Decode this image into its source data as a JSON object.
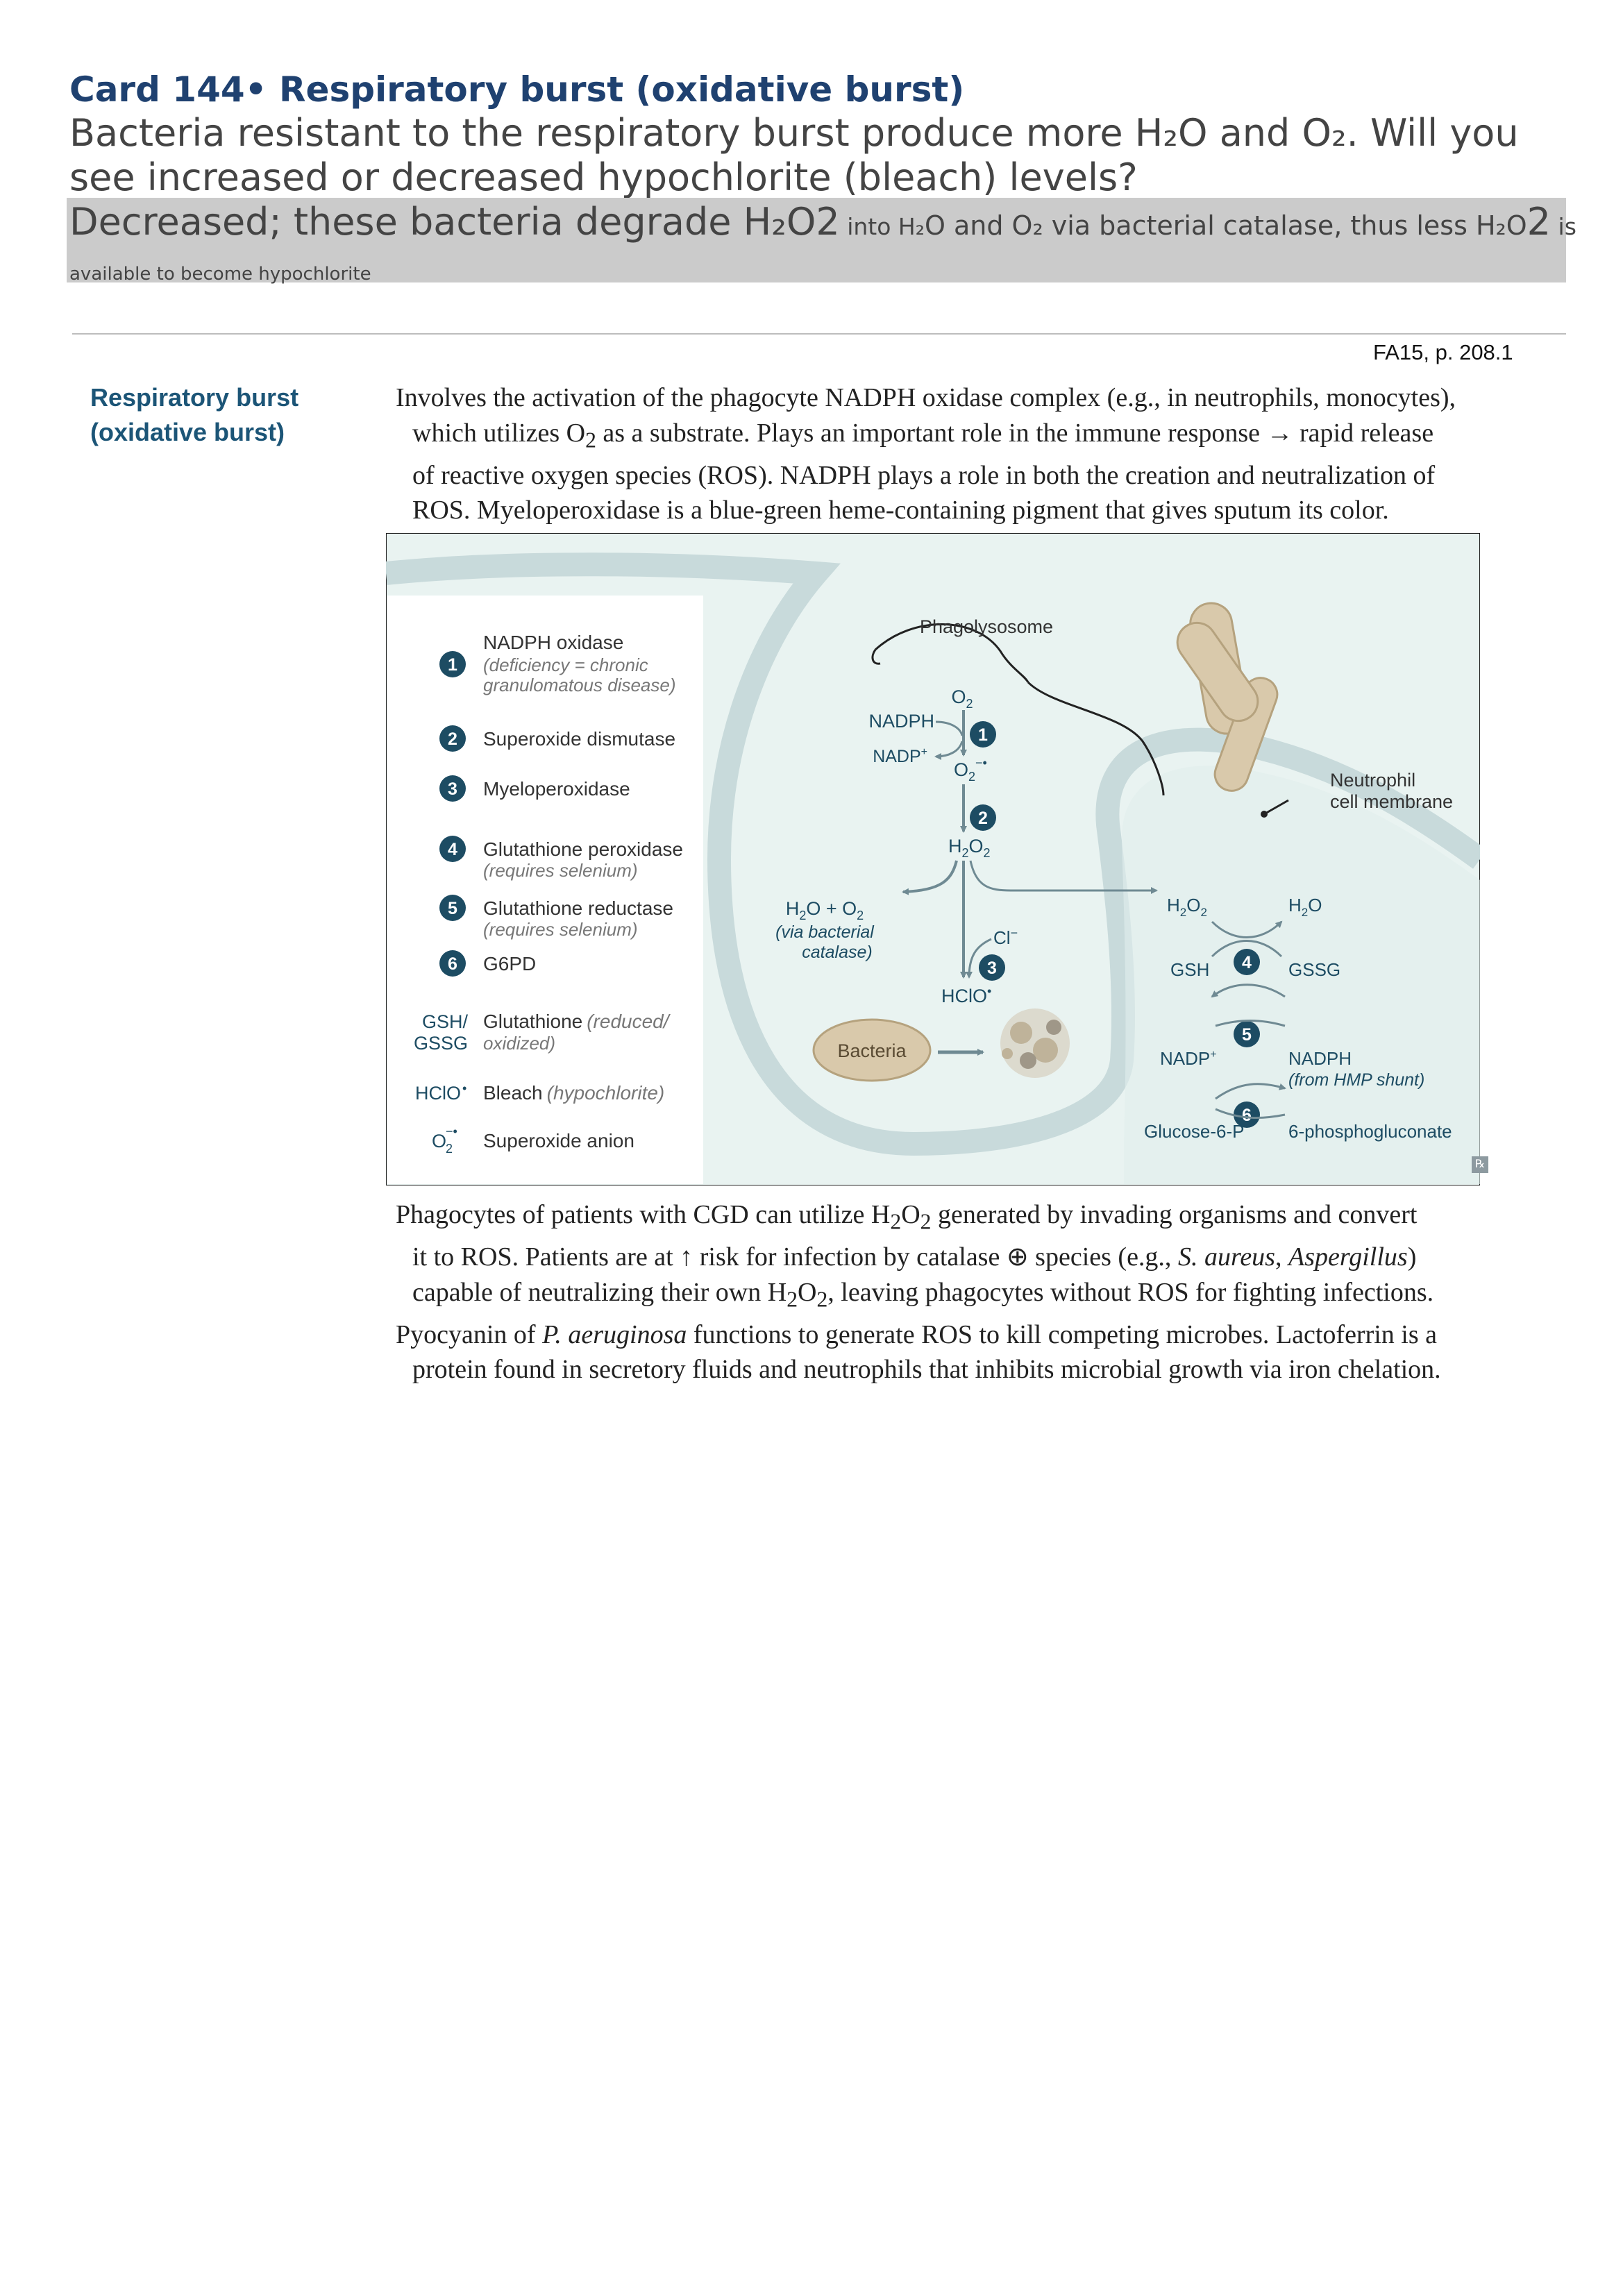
{
  "card": {
    "title": "Card 144• Respiratory burst (oxidative burst)",
    "question": "Bacteria resistant to the respiratory burst produce more H₂O and O₂. Will you see increased or decreased hypochlorite (bleach) levels?",
    "answer": {
      "a1": "Decreased; these bacteria degrade H₂O2",
      "a2": " into H₂",
      "a3": "O and O₂ via bacterial catalase, thus less H₂O",
      "a4": "2",
      "a5": " is",
      "a6": "available to become hypochlorite"
    }
  },
  "source_ref": "FA15, p. 208.1",
  "section_title": "Respiratory burst (oxidative burst)",
  "intro": {
    "l1": "Involves the activation of the phagocyte NADPH oxidase complex (e.g., in neutrophils, monocytes),",
    "l2a": "which utilizes O",
    "l2sub": "2",
    "l2b": " as a substrate. Plays an important role in the immune response → rapid release",
    "l3": "of reactive oxygen species (ROS). NADPH plays a role in both the creation and neutralization of",
    "l4": "ROS. Myeloperoxidase is a blue-green heme-containing pigment that gives sputum its color."
  },
  "figure": {
    "legend": [
      {
        "num": "1",
        "name": "NADPH oxidase",
        "note1": "(deficiency = chronic",
        "note2": "granulomatous disease)"
      },
      {
        "num": "2",
        "name": "Superoxide dismutase"
      },
      {
        "num": "3",
        "name": "Myeloperoxidase"
      },
      {
        "num": "4",
        "name": "Glutathione peroxidase",
        "note1": "(requires selenium)"
      },
      {
        "num": "5",
        "name": "Glutathione reductase",
        "note1": "(requires selenium)"
      },
      {
        "num": "6",
        "name": "G6PD"
      }
    ],
    "abbrev": {
      "gsh_key1": "GSH/",
      "gsh_key2": "GSSG",
      "gsh_val": "Glutathione",
      "gsh_note1": "(reduced/",
      "gsh_note2": "oxidized)",
      "hclo_key": "HClO",
      "hclo_val": "Bleach",
      "hclo_note": "(hypochlorite)",
      "o2_key": "O",
      "o2_val": "Superoxide anion"
    },
    "labels": {
      "phagolysosome": "Phagolysosome",
      "neutrophil1": "Neutrophil",
      "neutrophil2": "cell membrane",
      "nadph": "NADPH",
      "nadp": "NADP",
      "o2": "O",
      "h2o2": "H",
      "catalase_note1": "(via bacterial",
      "catalase_note2": "catalase)",
      "cl": "Cl",
      "hclo": "HClO",
      "bacteria": "Bacteria",
      "gsh": "GSH",
      "gssg": "GSSG",
      "h2o": "H",
      "nadph_right": "NADPH",
      "hmp_note": "(from HMP shunt)",
      "glucose6p": "Glucose-6-P",
      "phosphogluconate": "6-phosphogluconate"
    }
  },
  "outro": {
    "l1a": "Phagocytes of patients with CGD can utilize H",
    "l1b": " generated by invading organisms and convert",
    "l2a": "it to ROS. Patients are at ",
    "l2arrow": "↑",
    "l2b": " risk for infection by catalase ⊕ species (e.g., ",
    "l2i1": "S. aureus",
    "l2c": ", ",
    "l2i2": "Aspergillus",
    "l2d": ")",
    "l3a": "capable of neutralizing their own H",
    "l3b": ", leaving phagocytes without ROS for fighting infections.",
    "l4a": "Pyocyanin of ",
    "l4i": "P. aeruginosa",
    "l4b": " functions to generate ROS to kill competing microbes. Lactoferrin is a",
    "l5": "protein found in secretory fluids and neutrophils that inhibits microbial growth via iron chelation."
  },
  "colors": {
    "title_blue": "#1f4170",
    "figure_teal": "#1d4c63",
    "membrane": "#c8dadb",
    "cell_fill": "#e8f3f1",
    "bacteria_fill": "#d9c9ab"
  }
}
